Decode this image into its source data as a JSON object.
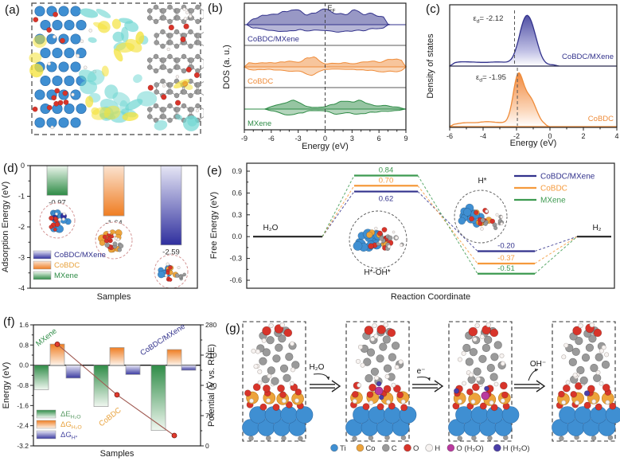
{
  "panel_labels": {
    "a": "(a)",
    "b": "(b)",
    "c": "(c)",
    "d": "(d)",
    "e": "(e)",
    "f": "(f)",
    "g": "(g)"
  },
  "atom_colors": {
    "Ti": "#3f8fd2",
    "Co": "#eda33b",
    "C": "#9a9a9a",
    "O": "#d8342a",
    "H": "#f7f3f1",
    "O_H2O": "#b93a9e",
    "H_H2O": "#4b3fa8"
  },
  "chart_data": [
    {
      "id": "b",
      "type": "area",
      "xlabel": "Energy (eV)",
      "ylabel": "DOS (a. u.)",
      "xlim": [
        -9,
        9
      ],
      "xticks": [
        -9,
        -6,
        -3,
        0,
        3,
        6,
        9
      ],
      "fermi": {
        "sym": "E",
        "sub": "F",
        "x": 0
      },
      "series": [
        {
          "name": "CoBDC/MXene",
          "color": "#32328c"
        },
        {
          "name": "CoBDC",
          "color": "#ef8c3a"
        },
        {
          "name": "MXene",
          "color": "#2e8b46"
        }
      ]
    },
    {
      "id": "c",
      "type": "area",
      "xlabel": "Energy (eV)",
      "ylabel": "Density of states",
      "xlim": [
        -6,
        4
      ],
      "xticks": [
        -6,
        -4,
        -2,
        0,
        2,
        4
      ],
      "series": [
        {
          "name": "CoBDC/MXene",
          "color": "#32328c",
          "d_band_center": -2.12,
          "label_sym": "ε",
          "label_sub": "d",
          "label_rest": "= -2.12"
        },
        {
          "name": "CoBDC",
          "color": "#ef8c3a",
          "d_band_center": -1.95,
          "label_sym": "ε",
          "label_sub": "d",
          "label_rest": "= -1.95"
        }
      ]
    },
    {
      "id": "d",
      "type": "bar",
      "xlabel": "Samples",
      "ylabel": "Adsorption Energy (eV)",
      "ylim": [
        -4,
        0
      ],
      "yticks": [
        0,
        -1,
        -2,
        -3,
        -4
      ],
      "categories": [
        "MXene",
        "CoBDC",
        "CoBDC/MXene"
      ],
      "values": [
        -0.97,
        -1.64,
        -2.59
      ],
      "bar_colors": [
        "#2e8b46",
        "#ef7d22",
        "#2f2f9e"
      ],
      "legend": [
        {
          "label": "CoBDC/MXene",
          "color": "#32328c"
        },
        {
          "label": "CoBDC",
          "color": "#e8a23c"
        },
        {
          "label": "MXene",
          "color": "#2e8b46"
        }
      ]
    },
    {
      "id": "e",
      "type": "line",
      "xlabel": "Reaction Coordinate",
      "ylabel": "Free Energy (eV)",
      "ylim": [
        -0.75,
        1.05
      ],
      "yticks": [
        0.9,
        0.6,
        0.3,
        0.0,
        -0.3,
        -0.6
      ],
      "stages": {
        "reactant": "H₂O",
        "transition_state": "H*-OH*",
        "intermediate": "H*",
        "product": "H₂"
      },
      "series": [
        {
          "name": "CoBDC/MXene",
          "color": "#32328c",
          "values": [
            0.0,
            0.62,
            -0.2,
            0.0
          ]
        },
        {
          "name": "CoBDC",
          "color": "#f59a3c",
          "values": [
            0.0,
            0.7,
            -0.37,
            0.0
          ]
        },
        {
          "name": "MXene",
          "color": "#3d9a50",
          "values": [
            0.0,
            0.84,
            -0.51,
            0.0
          ]
        }
      ]
    },
    {
      "id": "f",
      "type": "bar",
      "xlabel": "Samples",
      "ylabel": "Energy (eV)",
      "ylabel_right": "Potential (V vs. RHE)",
      "ylim": [
        -3.2,
        1.6
      ],
      "yticks": [
        1.6,
        0.8,
        0.0,
        -0.8,
        -1.6,
        -2.4,
        -3.2
      ],
      "ylim_right": [
        0,
        280
      ],
      "yticks_right": [
        0,
        70,
        140,
        210,
        280
      ],
      "categories": [
        "MXene",
        "CoBDC",
        "CoBDC/MXene"
      ],
      "category_colors": [
        "#2e8b46",
        "#e8a23c",
        "#32328c"
      ],
      "series": [
        {
          "main": "ΔE",
          "sub": "H₂O",
          "color": "#2e8b46",
          "label_color": "#5a9a64",
          "values": [
            -0.97,
            -1.64,
            -2.59
          ]
        },
        {
          "main": "ΔG",
          "sub": "H₂O",
          "color": "#ef7d22",
          "label_color": "#e8a23c",
          "values": [
            0.84,
            0.7,
            0.62
          ]
        },
        {
          "main": "ΔG",
          "sub": "H*",
          "color": "#3a3aa0",
          "label_color": "#4646a0",
          "values": [
            -0.51,
            -0.37,
            -0.2
          ]
        }
      ],
      "line_series": {
        "name": "Potential",
        "color": "#e23b2e",
        "values": [
          235,
          118,
          24
        ]
      }
    }
  ],
  "panel_g": {
    "arrows": [
      {
        "label": "H₂O",
        "direction": "in"
      },
      {
        "label": "e⁻",
        "direction": "in"
      },
      {
        "label": "OH⁻",
        "direction": "out"
      }
    ],
    "legend": [
      {
        "label": "Ti",
        "color": "#3f8fd2"
      },
      {
        "label": "Co",
        "color": "#eda33b"
      },
      {
        "label": "C",
        "color": "#9a9a9a"
      },
      {
        "label": "O",
        "color": "#d8342a"
      },
      {
        "label": "H",
        "color": "#f7f3f1"
      },
      {
        "label": "O (H₂O)",
        "color": "#b93a9e"
      },
      {
        "label": "H (H₂O)",
        "color": "#4b3fa8"
      }
    ]
  }
}
